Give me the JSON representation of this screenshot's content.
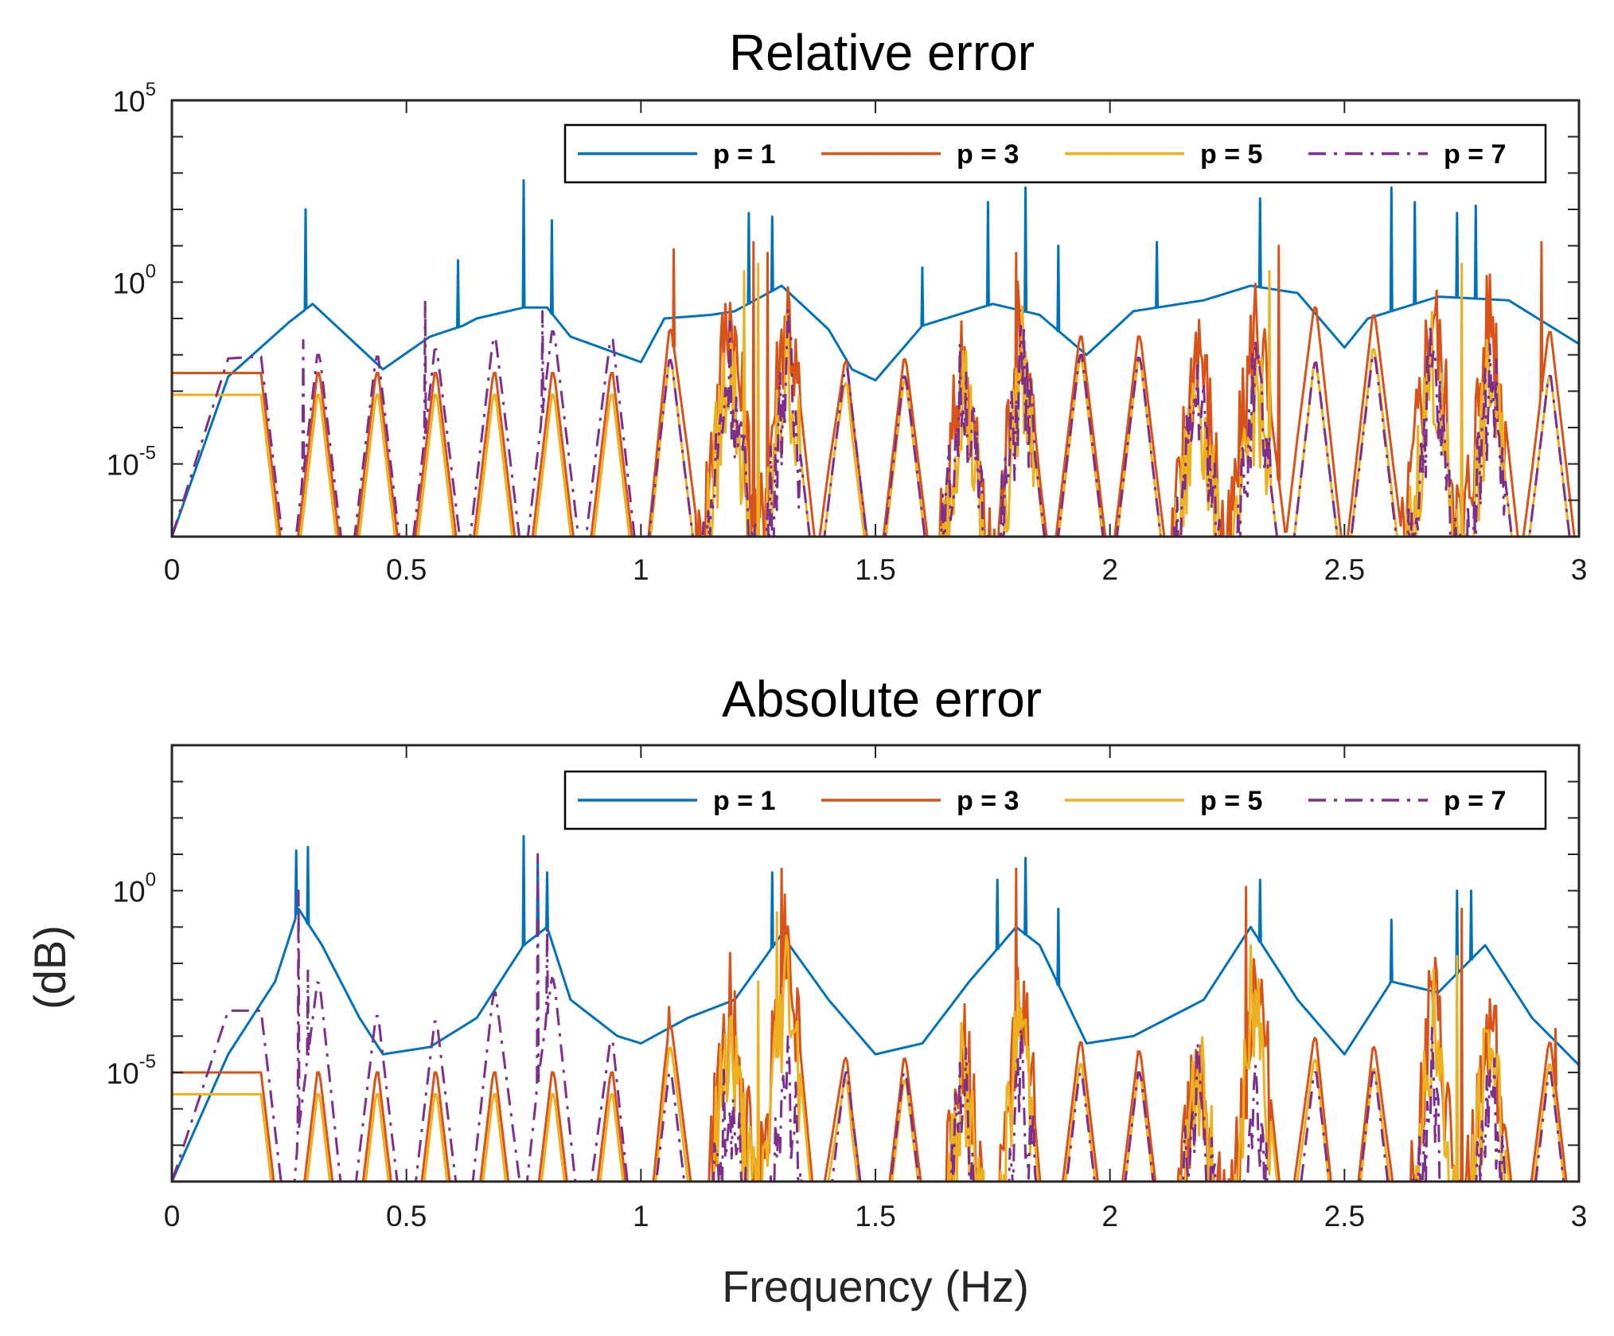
{
  "figure": {
    "xlabel": "Frequency (Hz)",
    "ylabel": "(dB)"
  },
  "legend": [
    {
      "label": "p = 1",
      "color": "#0072BD",
      "dash": "solid"
    },
    {
      "label": "p = 3",
      "color": "#D95319",
      "dash": "solid"
    },
    {
      "label": "p = 5",
      "color": "#EDB120",
      "dash": "solid"
    },
    {
      "label": "p = 7",
      "color": "#7E2F8E",
      "dash": "dashdot"
    }
  ],
  "chart_data": [
    {
      "type": "line",
      "title": "Relative error",
      "xlabel": "",
      "ylabel": "",
      "yscale": "log",
      "xlim": [
        0,
        3
      ],
      "ylim_log10": [
        -7,
        5
      ],
      "xticks": [
        "0",
        "0.5",
        "1",
        "1.5",
        "2",
        "2.5",
        "3"
      ],
      "yticks": [
        {
          "base": "10",
          "exp": "5",
          "value": 5
        },
        {
          "base": "10",
          "exp": "0",
          "value": 0
        },
        {
          "base": "10",
          "exp": "-5",
          "value": -5
        }
      ],
      "legend_position": "top-right",
      "antiresonances": [
        0.25,
        0.375,
        0.5,
        0.625,
        0.75,
        0.875,
        1.0,
        1.125,
        1.25,
        1.375,
        1.5,
        1.625,
        1.75,
        1.875,
        2.0,
        2.125,
        2.25,
        2.375,
        2.5,
        2.625,
        2.75,
        2.875,
        3.0
      ],
      "series": [
        {
          "name": "p = 1",
          "baseline_x": [
            0,
            0.12,
            0.25,
            0.3,
            0.4,
            0.45,
            0.55,
            0.62,
            0.65,
            0.75,
            0.8,
            0.85,
            1.0,
            1.05,
            1.15,
            1.2,
            1.3,
            1.4,
            1.45,
            1.5,
            1.6,
            1.75,
            1.85,
            1.95,
            2.05,
            2.2,
            2.3,
            2.4,
            2.5,
            2.55,
            2.7,
            2.85,
            2.95,
            3.0
          ],
          "baseline_y": [
            -7,
            -2.6,
            -1.1,
            -0.6,
            -1.8,
            -2.4,
            -1.5,
            -1.2,
            -1.0,
            -0.7,
            -0.7,
            -1.5,
            -2.2,
            -1.0,
            -0.9,
            -0.8,
            -0.1,
            -1.3,
            -2.4,
            -2.7,
            -1.2,
            -0.6,
            -0.9,
            -2.0,
            -0.8,
            -0.5,
            -0.1,
            -0.3,
            -1.8,
            -1.0,
            -0.4,
            -0.5,
            -1.3,
            -1.7
          ],
          "peaks": [
            {
              "x": 0.285,
              "y": 2.0
            },
            {
              "x": 0.61,
              "y": 0.6
            },
            {
              "x": 0.75,
              "y": 2.8
            },
            {
              "x": 0.81,
              "y": 1.7
            },
            {
              "x": 1.23,
              "y": 1.9
            },
            {
              "x": 1.28,
              "y": 1.8
            },
            {
              "x": 1.6,
              "y": 0.4
            },
            {
              "x": 1.74,
              "y": 2.2
            },
            {
              "x": 1.82,
              "y": 2.6
            },
            {
              "x": 1.89,
              "y": 1.0
            },
            {
              "x": 2.1,
              "y": 1.1
            },
            {
              "x": 2.32,
              "y": 2.3
            },
            {
              "x": 2.6,
              "y": 2.6
            },
            {
              "x": 2.65,
              "y": 2.2
            },
            {
              "x": 2.74,
              "y": 1.9
            },
            {
              "x": 2.78,
              "y": 2.1
            }
          ]
        },
        {
          "name": "p = 3",
          "baseline_x": [
            1.0,
            1.05,
            1.1,
            1.2,
            1.3,
            1.4,
            1.45,
            1.75,
            1.8,
            1.85,
            2.1,
            2.2,
            2.3,
            2.4,
            2.5,
            2.7,
            2.8,
            2.9,
            3.0
          ],
          "baseline_y": [
            -2.5,
            -1.5,
            -0.8,
            -0.3,
            -0.2,
            -1.3,
            -2.5,
            -1.5,
            -0.4,
            -1.5,
            -1.5,
            -1.0,
            -0.6,
            -0.4,
            -1.2,
            -0.3,
            -0.3,
            -1.3,
            -1.5
          ],
          "peaks": [
            {
              "x": 1.07,
              "y": 0.9
            },
            {
              "x": 1.24,
              "y": 1.1
            },
            {
              "x": 1.27,
              "y": 0.8
            },
            {
              "x": 1.8,
              "y": 0.8
            },
            {
              "x": 2.36,
              "y": 1.0
            },
            {
              "x": 2.92,
              "y": 1.1
            }
          ]
        },
        {
          "name": "p = 5",
          "baseline_x": [],
          "baseline_y": [],
          "peaks": [
            {
              "x": 1.22,
              "y": 0.3
            },
            {
              "x": 1.25,
              "y": 0.5
            },
            {
              "x": 2.34,
              "y": 0.3
            },
            {
              "x": 2.75,
              "y": 0.5
            }
          ]
        },
        {
          "name": "p = 7",
          "baseline_x": [
            0,
            0.12,
            0.25,
            0.3,
            0.375,
            0.5,
            0.6,
            0.75,
            0.9,
            1.0
          ],
          "baseline_y": [
            -7,
            -2.1,
            -2.0,
            -2.0,
            -2.0,
            -2.1,
            -1.7,
            -1.4,
            -1.3,
            -2.0
          ],
          "peaks": [
            {
              "x": 0.28,
              "y": -1.6
            },
            {
              "x": 0.54,
              "y": -0.5
            },
            {
              "x": 0.79,
              "y": -0.8
            }
          ]
        }
      ]
    },
    {
      "type": "line",
      "title": "Absolute error",
      "xlabel": "Frequency (Hz)",
      "ylabel": "(dB)",
      "yscale": "log",
      "xlim": [
        0,
        3
      ],
      "ylim_log10": [
        -8,
        4
      ],
      "xticks": [
        "0",
        "0.5",
        "1",
        "1.5",
        "2",
        "2.5",
        "3"
      ],
      "yticks": [
        {
          "base": "10",
          "exp": "0",
          "value": 0
        },
        {
          "base": "10",
          "exp": "-5",
          "value": -5
        }
      ],
      "legend_position": "top-right",
      "antiresonances": [
        0.25,
        0.375,
        0.5,
        0.625,
        0.75,
        0.875,
        1.0,
        1.125,
        1.25,
        1.375,
        1.5,
        1.625,
        1.75,
        1.875,
        2.0,
        2.125,
        2.25,
        2.375,
        2.5,
        2.625,
        2.75,
        2.875,
        3.0
      ],
      "series": [
        {
          "name": "p = 1",
          "baseline_x": [
            0,
            0.12,
            0.22,
            0.27,
            0.32,
            0.4,
            0.45,
            0.55,
            0.65,
            0.75,
            0.8,
            0.85,
            0.95,
            1.0,
            1.1,
            1.2,
            1.3,
            1.4,
            1.5,
            1.6,
            1.7,
            1.8,
            1.85,
            1.95,
            2.05,
            2.2,
            2.3,
            2.4,
            2.5,
            2.6,
            2.7,
            2.8,
            2.9,
            3.0
          ],
          "baseline_y": [
            -8,
            -4.5,
            -2.5,
            -0.5,
            -1.5,
            -3.5,
            -4.5,
            -4.3,
            -3.5,
            -1.5,
            -1.0,
            -3.0,
            -4.0,
            -4.2,
            -3.5,
            -3.0,
            -1.2,
            -3.0,
            -4.5,
            -4.2,
            -2.5,
            -1.0,
            -1.5,
            -4.2,
            -4.0,
            -3.0,
            -1.0,
            -3.0,
            -4.5,
            -2.5,
            -2.8,
            -1.5,
            -3.5,
            -4.8
          ],
          "peaks": [
            {
              "x": 0.265,
              "y": 1.1
            },
            {
              "x": 0.29,
              "y": 1.2
            },
            {
              "x": 0.75,
              "y": 1.5
            },
            {
              "x": 0.78,
              "y": 0.8
            },
            {
              "x": 0.8,
              "y": 0.5
            },
            {
              "x": 1.28,
              "y": 0.5
            },
            {
              "x": 1.76,
              "y": 0.3
            },
            {
              "x": 1.82,
              "y": 0.9
            },
            {
              "x": 1.89,
              "y": -0.5
            },
            {
              "x": 2.32,
              "y": 0.3
            },
            {
              "x": 2.6,
              "y": -0.8
            },
            {
              "x": 2.74,
              "y": 0.0
            },
            {
              "x": 2.77,
              "y": 0.0
            }
          ]
        },
        {
          "name": "p = 3",
          "baseline_x": [
            1.0,
            1.05,
            1.1,
            1.2,
            1.3,
            1.4,
            1.45,
            1.75,
            1.8,
            1.85,
            2.1,
            2.2,
            2.3,
            2.4,
            2.5,
            2.7,
            2.8,
            2.9,
            3.0
          ],
          "baseline_y": [
            -5.0,
            -3.8,
            -3.5,
            -3.0,
            -0.5,
            -3.5,
            -5.0,
            -4.0,
            -2.0,
            -4.0,
            -4.5,
            -4.0,
            -2.0,
            -3.5,
            -5.0,
            -2.8,
            -3.0,
            -4.0,
            -4.5
          ],
          "peaks": [
            {
              "x": 1.06,
              "y": -3.2
            },
            {
              "x": 1.3,
              "y": 0.6
            },
            {
              "x": 1.8,
              "y": 0.6
            },
            {
              "x": 2.29,
              "y": 0.1
            },
            {
              "x": 2.75,
              "y": -0.5
            },
            {
              "x": 2.95,
              "y": -3.8
            }
          ]
        },
        {
          "name": "p = 5",
          "baseline_x": [],
          "baseline_y": [],
          "peaks": [
            {
              "x": 1.25,
              "y": -2.5
            },
            {
              "x": 1.29,
              "y": -0.6
            },
            {
              "x": 2.3,
              "y": -1.5
            },
            {
              "x": 2.74,
              "y": -1.8
            }
          ]
        },
        {
          "name": "p = 7",
          "baseline_x": [
            0,
            0.12,
            0.25,
            0.27,
            0.32,
            0.375,
            0.5,
            0.6,
            0.78,
            0.9,
            1.0
          ],
          "baseline_y": [
            -8,
            -3.3,
            -3.3,
            -2.2,
            -2.6,
            -3.3,
            -3.6,
            -3.6,
            -2.0,
            -3.6,
            -5.0
          ],
          "peaks": [
            {
              "x": 0.27,
              "y": 0.0
            },
            {
              "x": 0.29,
              "y": -2.2
            },
            {
              "x": 0.78,
              "y": 1.0
            },
            {
              "x": 0.8,
              "y": -1.0
            }
          ]
        }
      ]
    }
  ]
}
